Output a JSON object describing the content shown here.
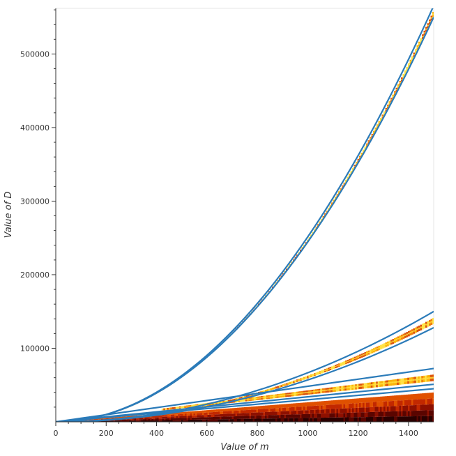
{
  "chart_data": {
    "type": "heatmap",
    "title": "",
    "xlabel": "Value of m",
    "ylabel": "Value of D",
    "xlim": [
      0,
      1500
    ],
    "ylim": [
      0,
      562000
    ],
    "x_ticks": [
      0,
      200,
      400,
      600,
      800,
      1000,
      1200,
      1400
    ],
    "x_tick_labels": [
      "0",
      "200",
      "400",
      "600",
      "800",
      "1000",
      "1200",
      "1400"
    ],
    "y_ticks": [
      100000,
      200000,
      300000,
      400000,
      500000
    ],
    "y_tick_labels": [
      "100000",
      "200000",
      "300000",
      "400000",
      "500000"
    ],
    "grid": false,
    "legend": "none",
    "colormap": "afmhot (dark red to yellow)",
    "density_bands": [
      {
        "name": "",
        "x": [
          0,
          1500
        ],
        "center_at_xmax": 558000,
        "relative_width": 0.012
      },
      {
        "name": "",
        "x": [
          0,
          1500
        ],
        "center_at_xmax": 138000,
        "relative_width": 0.06
      },
      {
        "name": "",
        "x": [
          420,
          1500
        ],
        "center_at_xmax": 60000,
        "relative_width": 0.15
      },
      {
        "name": "",
        "x": [
          0,
          1500
        ],
        "center_at_xmax": 20000,
        "relative_width": 1.0
      }
    ],
    "series": [
      {
        "name": "",
        "x": [
          0,
          300,
          600,
          900,
          1200,
          1500
        ],
        "values": [
          0,
          22600,
          90500,
          203600,
          361900,
          565500
        ]
      },
      {
        "name": "",
        "x": [
          0,
          300,
          600,
          900,
          1200,
          1500
        ],
        "values": [
          0,
          22000,
          88000,
          198000,
          352000,
          550000
        ]
      },
      {
        "name": "",
        "x": [
          0,
          300,
          600,
          900,
          1200,
          1500
        ],
        "values": [
          0,
          6000,
          24000,
          54000,
          96000,
          150000
        ]
      },
      {
        "name": "",
        "x": [
          0,
          300,
          600,
          900,
          1200,
          1500
        ],
        "values": [
          0,
          5100,
          20500,
          46100,
          81900,
          128000
        ]
      },
      {
        "name": "",
        "x": [
          0,
          300,
          600,
          900,
          1200,
          1500
        ],
        "values": [
          0,
          14500,
          29000,
          43500,
          58000,
          72500
        ]
      },
      {
        "name": "",
        "x": [
          0,
          300,
          600,
          900,
          1200,
          1500
        ],
        "values": [
          0,
          10200,
          20400,
          30600,
          40800,
          51000
        ]
      },
      {
        "name": "",
        "x": [
          0,
          300,
          600,
          900,
          1200,
          1500
        ],
        "values": [
          0,
          9000,
          18000,
          27000,
          36000,
          45000
        ]
      }
    ],
    "series_color": "#2b7bb9"
  }
}
